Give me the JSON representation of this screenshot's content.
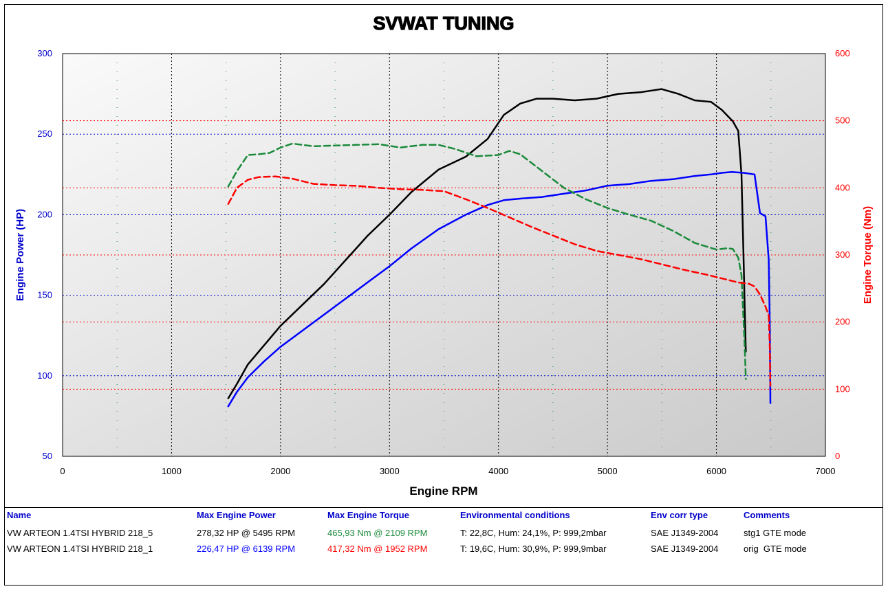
{
  "chart_data": {
    "type": "line",
    "title": "SVWAT TUNING",
    "xlabel": "Engine RPM",
    "ylabel_left": "Engine Power (HP)",
    "ylabel_right": "Engine Torque (Nm)",
    "xlim": [
      0,
      7000
    ],
    "ylim_left": [
      50,
      300
    ],
    "ylim_right": [
      0,
      600
    ],
    "x_ticks": [
      0,
      1000,
      2000,
      3000,
      4000,
      5000,
      6000,
      7000
    ],
    "y_ticks_left": [
      50,
      100,
      150,
      200,
      250,
      300
    ],
    "y_ticks_right": [
      0,
      100,
      200,
      300,
      400,
      500,
      600
    ],
    "grid": true,
    "colors": {
      "power_stg1": "#000000",
      "power_orig": "#0000ff",
      "torque_stg1": "#1a8a3a",
      "torque_orig": "#ff0000",
      "left_axis": "#0000cc",
      "right_axis": "#ff0000"
    },
    "series": [
      {
        "key": "power_stg1",
        "axis": "left",
        "style": "solid",
        "x": [
          1520,
          1600,
          1700,
          1850,
          2000,
          2200,
          2400,
          2600,
          2800,
          3000,
          3200,
          3450,
          3700,
          3900,
          4050,
          4200,
          4350,
          4500,
          4700,
          4900,
          5100,
          5300,
          5495,
          5650,
          5800,
          5950,
          6050,
          6150,
          6200,
          6230,
          6250,
          6260,
          6270
        ],
        "y": [
          86,
          95,
          107,
          119,
          131,
          144,
          157,
          172,
          187,
          200,
          214,
          228,
          236,
          247,
          262,
          269,
          272,
          272,
          271,
          272,
          275,
          276,
          278,
          275,
          271,
          270,
          265,
          258,
          252,
          225,
          170,
          140,
          115
        ]
      },
      {
        "key": "power_orig",
        "axis": "left",
        "style": "solid",
        "x": [
          1520,
          1600,
          1700,
          1850,
          2000,
          2200,
          2400,
          2600,
          2800,
          3000,
          3200,
          3450,
          3700,
          3900,
          4050,
          4200,
          4400,
          4600,
          4800,
          5000,
          5200,
          5400,
          5600,
          5800,
          5950,
          6050,
          6139,
          6250,
          6350,
          6400,
          6450,
          6480,
          6490,
          6495
        ],
        "y": [
          81,
          90,
          99,
          109,
          118,
          128,
          138,
          148,
          158,
          168,
          179,
          191,
          200,
          206,
          209,
          210,
          211,
          213,
          215,
          218,
          219,
          221,
          222,
          224,
          225,
          226,
          226.5,
          226,
          225,
          201,
          199,
          172,
          130,
          83
        ]
      },
      {
        "key": "torque_stg1",
        "axis": "right",
        "style": "dashed",
        "x": [
          1520,
          1600,
          1700,
          1800,
          1900,
          2000,
          2109,
          2300,
          2500,
          2700,
          2900,
          3100,
          3300,
          3450,
          3600,
          3800,
          4000,
          4100,
          4200,
          4400,
          4600,
          4800,
          5000,
          5200,
          5400,
          5600,
          5800,
          6000,
          6100,
          6150,
          6200,
          6230,
          6260,
          6270
        ],
        "y": [
          402,
          425,
          449,
          450,
          452,
          460,
          466,
          462,
          463,
          464,
          465,
          460,
          464,
          464,
          458,
          447,
          449,
          455,
          450,
          425,
          400,
          383,
          370,
          360,
          351,
          336,
          318,
          308,
          310,
          309,
          296,
          270,
          160,
          115
        ]
      },
      {
        "key": "torque_orig",
        "axis": "right",
        "style": "dashed",
        "x": [
          1520,
          1600,
          1700,
          1800,
          1952,
          2100,
          2300,
          2500,
          2700,
          2900,
          3100,
          3300,
          3500,
          3700,
          3900,
          4100,
          4300,
          4500,
          4700,
          4900,
          5100,
          5300,
          5500,
          5700,
          5900,
          6100,
          6200,
          6300,
          6350,
          6400,
          6450,
          6480,
          6490,
          6495
        ],
        "y": [
          376,
          400,
          412,
          416,
          417,
          414,
          406,
          404,
          403,
          400,
          398,
          397,
          395,
          383,
          370,
          356,
          342,
          329,
          316,
          306,
          300,
          294,
          286,
          278,
          271,
          263,
          259,
          257,
          253,
          241,
          223,
          210,
          160,
          105
        ]
      }
    ]
  },
  "results": {
    "headers": {
      "name": "Name",
      "power": "Max Engine Power",
      "torque": "Max Engine Torque",
      "env": "Environmental conditions",
      "corr": "Env corr type",
      "comments": "Comments"
    },
    "rows": [
      {
        "name": "VW ARTEON 1.4TSI HYBRID 218_5",
        "power": "278,32 HP @ 5495 RPM",
        "torque": "465,93 Nm @ 2109 RPM",
        "env": "T: 22,8C, Hum: 24,1%, P: 999,2mbar",
        "corr": "SAE J1349-2004",
        "comments": "stg1 GTE mode",
        "power_color": "#000000",
        "torque_color": "#1a8a3a"
      },
      {
        "name": "VW ARTEON 1.4TSI HYBRID 218_1",
        "power": "226,47 HP @ 6139 RPM",
        "torque": "417,32 Nm @ 1952 RPM",
        "env": "T: 19,6C, Hum: 30,9%, P: 999,9mbar",
        "corr": "SAE J1349-2004",
        "comments": "orig  GTE mode",
        "power_color": "#0000ff",
        "torque_color": "#ff0000"
      }
    ]
  }
}
